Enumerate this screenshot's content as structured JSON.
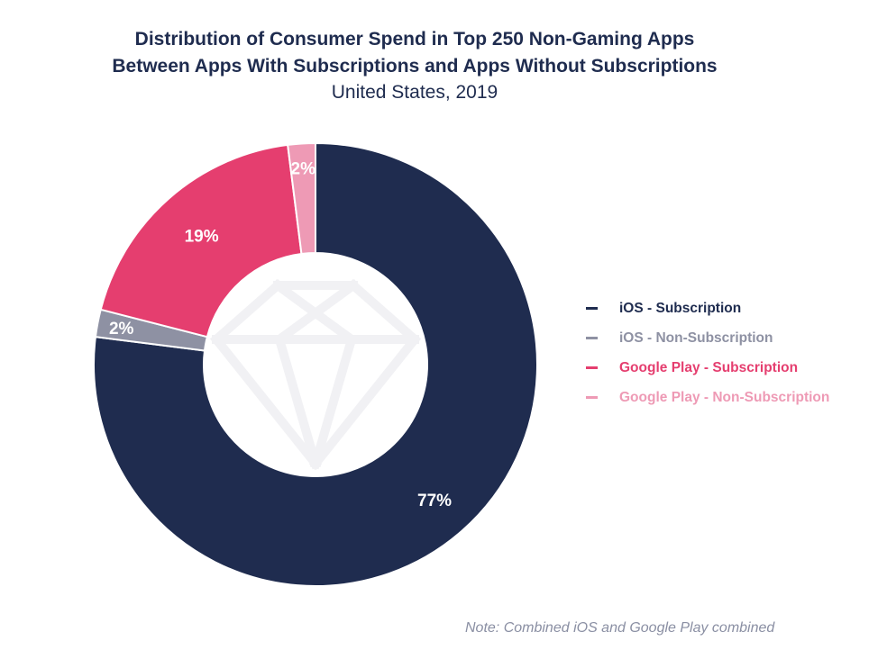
{
  "chart_data": {
    "type": "pie",
    "variant": "donut",
    "title": "Distribution of Consumer Spend in Top 250 Non-Gaming Apps",
    "title_line2": "Between Apps With Subscriptions and Apps Without Subscriptions",
    "subtitle": "United States, 2019",
    "start_angle": "top",
    "direction": "clockwise",
    "slices": [
      {
        "name": "iOS - Subscription",
        "value": 77,
        "label": "77%",
        "color": "#1f2c4f"
      },
      {
        "name": "iOS - Non-Subscription",
        "value": 2,
        "label": "2%",
        "color": "#8e91a3"
      },
      {
        "name": "Google Play - Subscription",
        "value": 19,
        "label": "19%",
        "color": "#e53e6f"
      },
      {
        "name": "Google Play - Non-Subscription",
        "value": 2,
        "label": "2%",
        "color": "#ee9ab5"
      }
    ],
    "legend_position": "right",
    "note": "Note: Combined iOS and Google Play combined"
  },
  "watermark": {
    "icon": "diamond-icon",
    "color": "#f1f1f4"
  }
}
